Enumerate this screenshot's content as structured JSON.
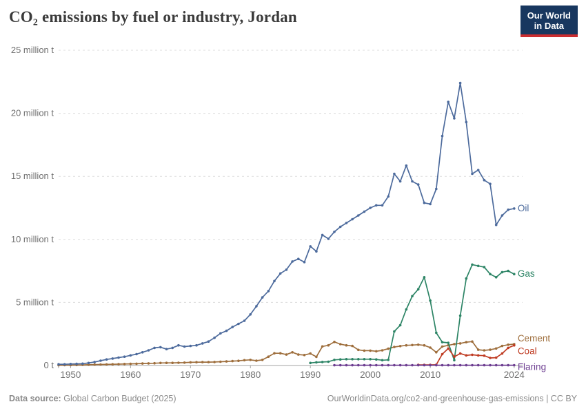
{
  "header": {
    "title": "CO₂ emissions by fuel or industry, Jordan",
    "logo": {
      "lines": [
        "Our World",
        "in Data"
      ],
      "bg_color": "#18375F",
      "accent_color": "#CB2D30",
      "text_color": "#ffffff"
    }
  },
  "footer": {
    "source_label": "Data source:",
    "source_value": "Global Carbon Budget (2025)",
    "attribution": "OurWorldinData.org/co2-and-greenhouse-gas-emissions | CC BY"
  },
  "chart_data": {
    "type": "line",
    "title": "CO₂ emissions by fuel or industry, Jordan",
    "unit": "million tonnes of CO₂",
    "x_range": [
      1948,
      2025.4
    ],
    "y_range": [
      0,
      25
    ],
    "grid": "horizontal-dashed",
    "legend_position": "line-end-labels",
    "axis_colors": {
      "grid": "#dcdcdc",
      "zero_line": "#a3a3a3",
      "tick_text": "#707070"
    },
    "y_ticks": [
      {
        "value": 0,
        "label": "0 t"
      },
      {
        "value": 5,
        "label": "5 million t"
      },
      {
        "value": 10,
        "label": "10 million t"
      },
      {
        "value": 15,
        "label": "15 million t"
      },
      {
        "value": 20,
        "label": "20 million t"
      },
      {
        "value": 25,
        "label": "25 million t"
      }
    ],
    "x_ticks": [
      {
        "value": 1950,
        "label": "1950"
      },
      {
        "value": 1960,
        "label": "1960"
      },
      {
        "value": 1970,
        "label": "1970"
      },
      {
        "value": 1980,
        "label": "1980"
      },
      {
        "value": 1990,
        "label": "1990"
      },
      {
        "value": 2000,
        "label": "2000"
      },
      {
        "value": 2010,
        "label": "2010"
      },
      {
        "value": 2024,
        "label": "2024"
      }
    ],
    "series": [
      {
        "name": "Oil",
        "color": "#4C6A9C",
        "start_year": 1948,
        "label_dy": 0,
        "values": [
          0.1,
          0.1,
          0.12,
          0.13,
          0.15,
          0.2,
          0.28,
          0.38,
          0.48,
          0.55,
          0.63,
          0.7,
          0.8,
          0.9,
          1.05,
          1.2,
          1.4,
          1.45,
          1.3,
          1.4,
          1.6,
          1.5,
          1.55,
          1.6,
          1.75,
          1.9,
          2.2,
          2.55,
          2.75,
          3.05,
          3.3,
          3.55,
          4.05,
          4.7,
          5.4,
          5.9,
          6.7,
          7.3,
          7.6,
          8.25,
          8.45,
          8.2,
          9.45,
          9.05,
          10.35,
          10.05,
          10.6,
          11.0,
          11.3,
          11.6,
          11.9,
          12.2,
          12.5,
          12.7,
          12.7,
          13.4,
          15.2,
          14.6,
          15.85,
          14.6,
          14.35,
          12.9,
          12.8,
          14.0,
          18.2,
          20.9,
          19.6,
          22.4,
          19.3,
          15.2,
          15.5,
          14.7,
          14.4,
          11.15,
          11.9,
          12.35,
          12.45
        ]
      },
      {
        "name": "Gas",
        "color": "#2C8465",
        "start_year": 1990,
        "label_dy": 0,
        "values": [
          0.2,
          0.25,
          0.28,
          0.3,
          0.45,
          0.48,
          0.5,
          0.5,
          0.5,
          0.5,
          0.5,
          0.48,
          0.42,
          0.45,
          2.7,
          3.2,
          4.45,
          5.5,
          6.05,
          7.0,
          5.15,
          2.6,
          1.85,
          1.8,
          0.42,
          3.95,
          6.9,
          8.0,
          7.9,
          7.8,
          7.25,
          7.0,
          7.4,
          7.5,
          7.25
        ]
      },
      {
        "name": "Cement",
        "color": "#9E6E3C",
        "start_year": 1948,
        "label_dy": -8,
        "values": [
          0.02,
          0.03,
          0.03,
          0.04,
          0.05,
          0.06,
          0.07,
          0.08,
          0.09,
          0.1,
          0.11,
          0.12,
          0.13,
          0.14,
          0.16,
          0.17,
          0.18,
          0.2,
          0.21,
          0.21,
          0.22,
          0.23,
          0.25,
          0.26,
          0.27,
          0.27,
          0.28,
          0.3,
          0.32,
          0.35,
          0.37,
          0.42,
          0.45,
          0.38,
          0.45,
          0.7,
          0.97,
          0.97,
          0.87,
          1.05,
          0.87,
          0.83,
          0.95,
          0.69,
          1.51,
          1.6,
          1.87,
          1.69,
          1.6,
          1.55,
          1.24,
          1.18,
          1.18,
          1.13,
          1.2,
          1.33,
          1.47,
          1.54,
          1.6,
          1.62,
          1.65,
          1.6,
          1.42,
          1.05,
          1.5,
          1.6,
          1.7,
          1.75,
          1.85,
          1.9,
          1.25,
          1.2,
          1.25,
          1.35,
          1.55,
          1.65,
          1.7
        ]
      },
      {
        "name": "Coal",
        "color": "#BF3B22",
        "start_year": 2008,
        "label_dy": 9,
        "values": [
          0.05,
          0.05,
          0.05,
          0.06,
          0.9,
          1.35,
          0.7,
          0.95,
          0.8,
          0.85,
          0.8,
          0.78,
          0.6,
          0.62,
          0.95,
          1.4,
          1.6
        ]
      },
      {
        "name": "Flaring",
        "color": "#6D3E91",
        "start_year": 1994,
        "label_dy": 3,
        "values": [
          0.02,
          0.02,
          0.02,
          0.02,
          0.02,
          0.02,
          0.02,
          0.02,
          0.02,
          0.02,
          0.02,
          0.02,
          0.02,
          0.02,
          0.02,
          0.02,
          0.02,
          0.02,
          0.02,
          0.02,
          0.02,
          0.02,
          0.02,
          0.02,
          0.02,
          0.02,
          0.02,
          0.02,
          0.02,
          0.02,
          0.02
        ]
      }
    ]
  }
}
